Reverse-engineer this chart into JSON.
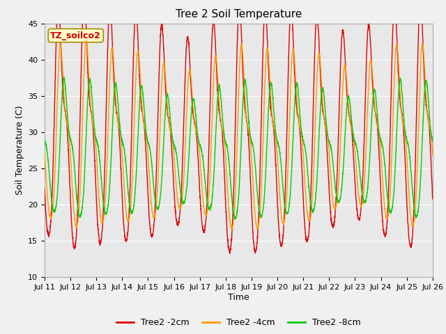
{
  "title": "Tree 2 Soil Temperature",
  "xlabel": "Time",
  "ylabel": "Soil Temperature (C)",
  "ylim": [
    10,
    45
  ],
  "x_tick_labels": [
    "Jul 11",
    "Jul 12",
    "Jul 13",
    "Jul 14",
    "Jul 15",
    "Jul 16",
    "Jul 17",
    "Jul 18",
    "Jul 19",
    "Jul 20",
    "Jul 21",
    "Jul 22",
    "Jul 23",
    "Jul 24",
    "Jul 25",
    "Jul 26"
  ],
  "legend_label": "TZ_soilco2",
  "series_labels": [
    "Tree2 -2cm",
    "Tree2 -4cm",
    "Tree2 -8cm"
  ],
  "colors": {
    "2cm": "#dd0000",
    "4cm": "#ff9900",
    "8cm": "#00cc00"
  },
  "background_color": "#f0f0f0",
  "plot_bg_color": "#e8e8e8",
  "title_fontsize": 11,
  "axis_label_fontsize": 9,
  "tick_fontsize": 8,
  "legend_fontsize": 9
}
